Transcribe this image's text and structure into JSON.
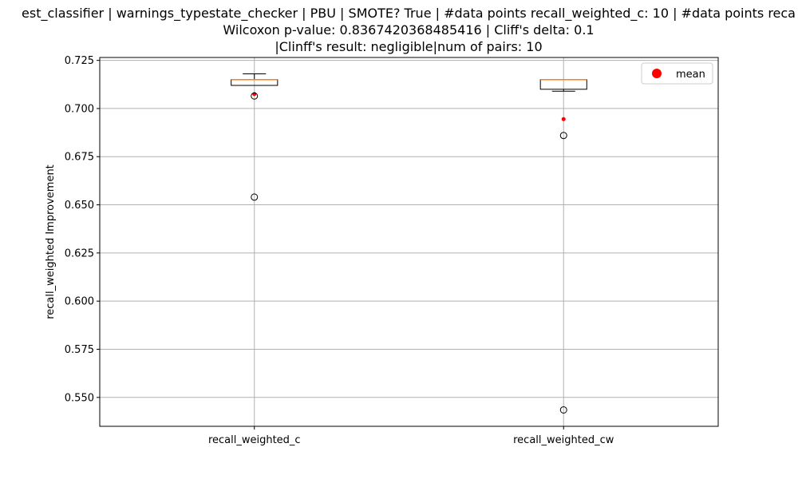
{
  "chart_data": {
    "type": "box",
    "title_lines": [
      "est_classifier | warnings_typestate_checker | PBU | SMOTE? True | #data points recall_weighted_c: 10 | #data points reca",
      "Wilcoxon p-value: 0.8367420368485416 | Cliff's delta: 0.1",
      "|Clinff's result: negligible|num of pairs: 10"
    ],
    "xlabel": "",
    "ylabel": "recall_weighted Improvement",
    "ylim": [
      0.535,
      0.7265
    ],
    "yticks": [
      0.55,
      0.575,
      0.6,
      0.625,
      0.65,
      0.675,
      0.7,
      0.725
    ],
    "ytick_labels": [
      "0.550",
      "0.575",
      "0.600",
      "0.625",
      "0.650",
      "0.675",
      "0.700",
      "0.725"
    ],
    "grid": true,
    "legend": {
      "placement": "top-right",
      "entries": [
        {
          "label": "mean",
          "color": "#ff0000",
          "marker": "circle"
        }
      ]
    },
    "categories": [
      "recall_weighted_c",
      "recall_weighted_cw"
    ],
    "boxes": [
      {
        "category": "recall_weighted_c",
        "whisker_low": 0.712,
        "q1": 0.712,
        "median": 0.715,
        "q3": 0.715,
        "whisker_high": 0.718,
        "mean": 0.7075,
        "outliers": [
          0.7065,
          0.654
        ]
      },
      {
        "category": "recall_weighted_cw",
        "whisker_low": 0.709,
        "q1": 0.71,
        "median": 0.715,
        "q3": 0.715,
        "whisker_high": 0.715,
        "mean": 0.6945,
        "outliers": [
          0.686,
          0.5435
        ]
      }
    ],
    "colors": {
      "median": "#ff7f0e",
      "mean": "#ff0000",
      "grid": "#b0b0b0",
      "box": "#000000"
    }
  }
}
